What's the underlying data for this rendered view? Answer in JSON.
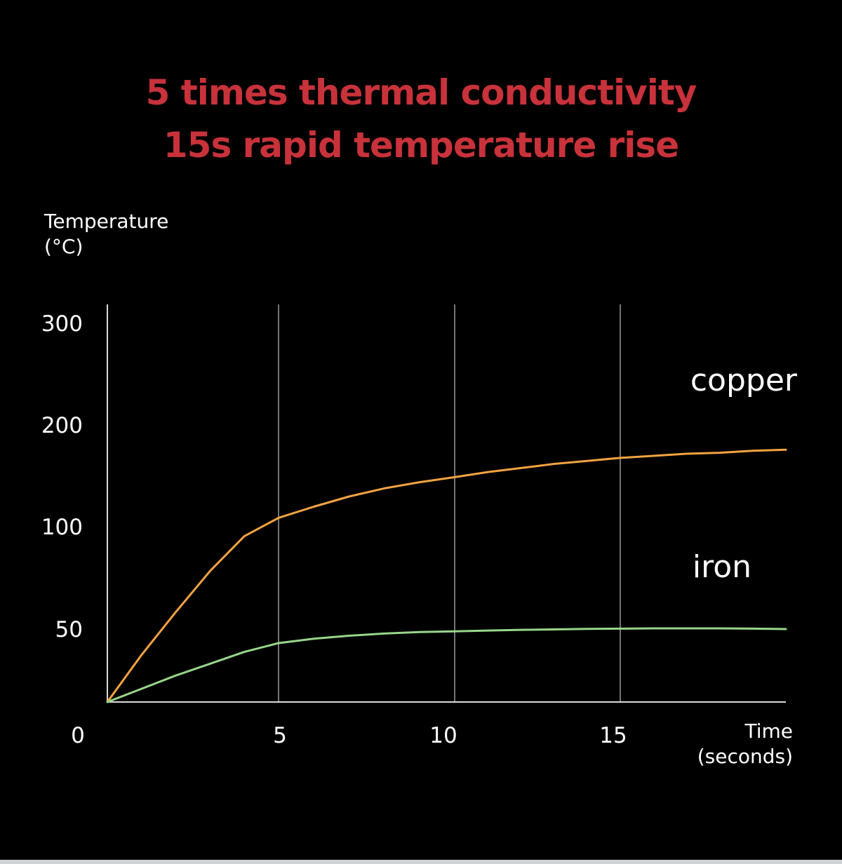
{
  "colors": {
    "background": "#000000",
    "title": "#c8323a",
    "text": "#ffffff",
    "gridline": "#9a9a9a",
    "axis": "#d9d9d9",
    "copper": "#f2a341",
    "iron": "#98d68a"
  },
  "title": {
    "line1": "5 times thermal conductivity",
    "line2": "15s rapid temperature rise"
  },
  "chart_data": {
    "type": "line",
    "ylabel": [
      "Temperature",
      "(°C)"
    ],
    "xlabel": [
      "Time",
      "(seconds)"
    ],
    "x_ticks": [
      "0",
      "5",
      "10",
      "15"
    ],
    "y_ticks": [
      "50",
      "100",
      "200",
      "300"
    ],
    "xlim": [
      0,
      20
    ],
    "grid_x": true,
    "grid_y": false,
    "y_scale_note": "non-linear tick spacing",
    "series": [
      {
        "name": "copper",
        "color_key": "copper",
        "x": [
          0,
          1,
          2,
          3,
          4,
          5,
          6,
          7,
          8,
          9,
          10,
          11,
          12,
          13,
          14,
          15,
          16,
          17,
          18,
          19,
          20
        ],
        "y": [
          0,
          32,
          58,
          78,
          95,
          108,
          119,
          129,
          137,
          143,
          148,
          153,
          157,
          161,
          164,
          167,
          169,
          171,
          172,
          174,
          175
        ]
      },
      {
        "name": "iron",
        "color_key": "iron",
        "x": [
          0,
          1,
          2,
          3,
          4,
          5,
          6,
          7,
          8,
          9,
          10,
          11,
          12,
          13,
          14,
          15,
          16,
          17,
          18,
          19,
          20
        ],
        "y": [
          0,
          9,
          18,
          26,
          34,
          40,
          43,
          45,
          46.5,
          47.5,
          48,
          48.5,
          49,
          49.3,
          49.6,
          49.8,
          50,
          50,
          50,
          49.8,
          49.5
        ]
      }
    ]
  }
}
